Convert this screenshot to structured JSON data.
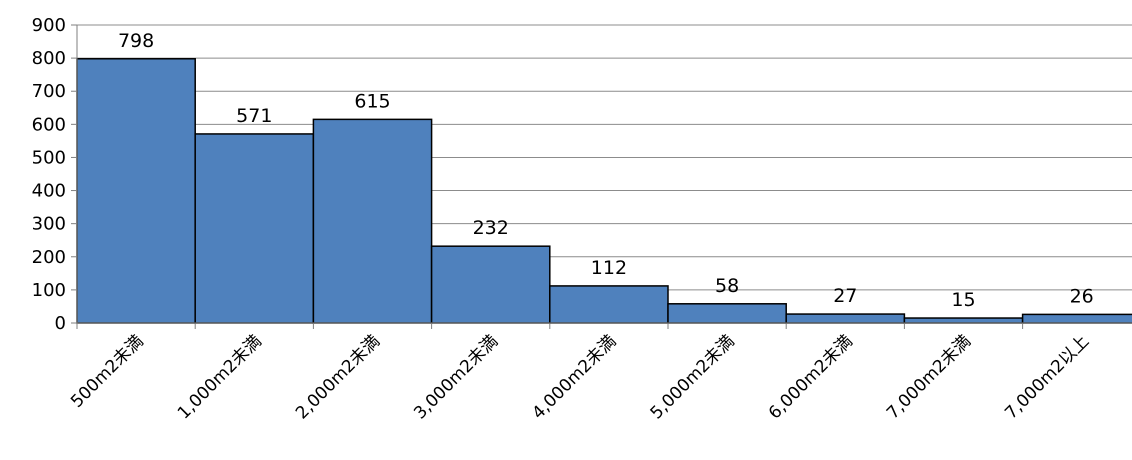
{
  "chart_data": {
    "type": "bar",
    "categories": [
      "500m2未満",
      "1,000m2未満",
      "2,000m2未満",
      "3,000m2未満",
      "4,000m2未満",
      "5,000m2未満",
      "6,000m2未満",
      "7,000m2未満",
      "7,000m2以上"
    ],
    "values": [
      798,
      571,
      615,
      232,
      112,
      58,
      27,
      15,
      26
    ],
    "ylim": [
      0,
      900
    ],
    "yticks": [
      0,
      100,
      200,
      300,
      400,
      500,
      600,
      700,
      800,
      900
    ],
    "title": "",
    "xlabel": "",
    "ylabel": "",
    "grid": true,
    "legend": "none",
    "bar_color": "#4f81bd",
    "data_labels": true
  }
}
